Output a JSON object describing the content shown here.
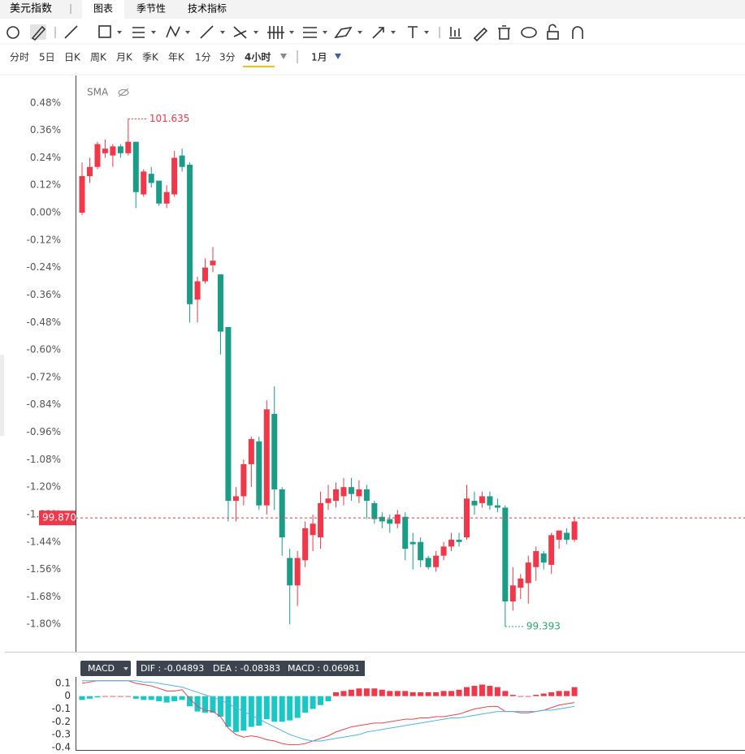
{
  "tabs": [
    "美元指数",
    "图表",
    "季节性",
    "技术指标"
  ],
  "periods": [
    "分时",
    "5日",
    "日K",
    "周K",
    "月K",
    "季K",
    "年K",
    "1分",
    "3分",
    "4小时"
  ],
  "range": "1月",
  "chart_data": [
    {
      "type": "candlestick",
      "indicator": "SMA",
      "up_color": "#f0384a",
      "down_color": "#1a9c86",
      "ylim": [
        -1.92,
        0.6
      ],
      "yticks": [
        {
          "value": 0.48,
          "label": "0.48%"
        },
        {
          "value": 0.36,
          "label": "0.36%"
        },
        {
          "value": 0.24,
          "label": "0.24%"
        },
        {
          "value": 0.12,
          "label": "0.12%"
        },
        {
          "value": 0,
          "label": "0.00%"
        },
        {
          "value": -0.12,
          "label": "-0.12%"
        },
        {
          "value": -0.24,
          "label": "-0.24%"
        },
        {
          "value": -0.36,
          "label": "-0.36%"
        },
        {
          "value": -0.48,
          "label": "-0.48%"
        },
        {
          "value": -0.6,
          "label": "-0.60%"
        },
        {
          "value": -0.72,
          "label": "-0.72%"
        },
        {
          "value": -0.84,
          "label": "-0.84%"
        },
        {
          "value": -0.96,
          "label": "-0.96%"
        },
        {
          "value": -1.08,
          "label": "-1.08%"
        },
        {
          "value": -1.2,
          "label": "-1.20%"
        },
        {
          "value": -1.32,
          "label": "-1.32%"
        },
        {
          "value": -1.44,
          "label": "-1.44%"
        },
        {
          "value": -1.56,
          "label": "-1.56%"
        },
        {
          "value": -1.68,
          "label": "-1.68%"
        },
        {
          "value": -1.8,
          "label": "-1.80%"
        }
      ],
      "open": [
        0.0,
        0.16,
        0.2,
        0.26,
        0.25,
        0.29,
        0.26,
        0.31,
        0.08,
        0.17,
        0.14,
        0.04,
        0.08,
        0.25,
        0.21,
        -0.38,
        -0.3,
        -0.23,
        -0.27,
        -0.5,
        -1.26,
        -1.24,
        -1.1,
        -1.0,
        -1.28,
        -0.88,
        -1.21,
        -1.51,
        -1.63,
        -1.52,
        -1.41,
        -1.42,
        -1.27,
        -1.26,
        -1.24,
        -1.2,
        -1.24,
        -1.21,
        -1.27,
        -1.33,
        -1.34,
        -1.36,
        -1.33,
        -1.44,
        -1.44,
        -1.51,
        -1.55,
        -1.5,
        -1.46,
        -1.43,
        -1.42,
        -1.26,
        -1.27,
        -1.24,
        -1.28,
        -1.29,
        -1.7,
        -1.64,
        -1.62,
        -1.55,
        -1.49,
        -1.54,
        -1.43,
        -1.4,
        -1.43
      ],
      "high": [
        0.22,
        0.24,
        0.31,
        0.32,
        0.3,
        0.3,
        0.41,
        0.31,
        0.19,
        0.2,
        0.14,
        0.12,
        0.27,
        0.28,
        0.22,
        -0.28,
        -0.2,
        -0.15,
        -0.27,
        -0.5,
        -1.2,
        -1.08,
        -0.98,
        -0.98,
        -0.82,
        -0.76,
        -1.2,
        -1.47,
        -1.48,
        -1.35,
        -1.32,
        -1.22,
        -1.19,
        -1.18,
        -1.16,
        -1.16,
        -1.17,
        -1.19,
        -1.26,
        -1.31,
        -1.32,
        -1.3,
        -1.31,
        -1.4,
        -1.42,
        -1.5,
        -1.48,
        -1.44,
        -1.4,
        -1.4,
        -1.19,
        -1.22,
        -1.22,
        -1.22,
        -1.25,
        -1.28,
        -1.55,
        -1.58,
        -1.5,
        -1.46,
        -1.48,
        -1.4,
        -1.39,
        -1.38,
        -1.33
      ],
      "low": [
        -0.01,
        0.13,
        0.19,
        0.24,
        0.2,
        0.24,
        0.25,
        0.02,
        0.07,
        0.11,
        0.03,
        0.02,
        0.07,
        0.18,
        -0.48,
        -0.48,
        -0.31,
        -0.26,
        -0.62,
        -1.35,
        -1.35,
        -1.28,
        -1.2,
        -1.3,
        -1.32,
        -1.3,
        -1.5,
        -1.8,
        -1.72,
        -1.55,
        -1.48,
        -1.47,
        -1.3,
        -1.29,
        -1.28,
        -1.26,
        -1.27,
        -1.34,
        -1.36,
        -1.38,
        -1.4,
        -1.38,
        -1.52,
        -1.56,
        -1.55,
        -1.56,
        -1.57,
        -1.52,
        -1.48,
        -1.46,
        -1.43,
        -1.32,
        -1.29,
        -1.3,
        -1.31,
        -1.81,
        -1.74,
        -1.69,
        -1.71,
        -1.61,
        -1.56,
        -1.58,
        -1.47,
        -1.45,
        -1.44
      ],
      "close": [
        0.16,
        0.2,
        0.3,
        0.28,
        0.29,
        0.26,
        0.31,
        0.09,
        0.18,
        0.13,
        0.04,
        0.09,
        0.24,
        0.2,
        -0.4,
        -0.3,
        -0.24,
        -0.21,
        -0.52,
        -1.26,
        -1.24,
        -1.1,
        -0.99,
        -1.28,
        -0.86,
        -1.21,
        -1.42,
        -1.63,
        -1.51,
        -1.38,
        -1.36,
        -1.27,
        -1.25,
        -1.21,
        -1.2,
        -1.23,
        -1.21,
        -1.26,
        -1.34,
        -1.35,
        -1.36,
        -1.32,
        -1.47,
        -1.45,
        -1.52,
        -1.55,
        -1.5,
        -1.46,
        -1.43,
        -1.44,
        -1.25,
        -1.28,
        -1.24,
        -1.28,
        -1.29,
        -1.7,
        -1.63,
        -1.6,
        -1.53,
        -1.48,
        -1.53,
        -1.41,
        -1.39,
        -1.43,
        -1.35
      ],
      "high_mark": {
        "index": 6,
        "label": "101.635"
      },
      "low_mark": {
        "index": 55,
        "label": "99.393"
      },
      "last_price": {
        "value": -1.335,
        "label": "99.870"
      }
    },
    {
      "type": "macd",
      "legend": "MACD",
      "readout": [
        "DIF : -0.04893",
        "DEA : -0.08383",
        "MACD : 0.06981"
      ],
      "ylim": [
        -0.42,
        0.15
      ],
      "yticks": [
        0.1,
        0,
        -0.1,
        -0.2,
        -0.3,
        -0.4
      ],
      "histogram": {
        "up_color": "#f0384a",
        "down_color": "#19c7c5",
        "values": [
          -0.03,
          -0.02,
          -0.01,
          0,
          0,
          0,
          0,
          -0.02,
          -0.03,
          -0.03,
          -0.04,
          -0.05,
          -0.04,
          -0.03,
          -0.08,
          -0.12,
          -0.13,
          -0.13,
          -0.16,
          -0.24,
          -0.28,
          -0.27,
          -0.24,
          -0.23,
          -0.18,
          -0.2,
          -0.2,
          -0.19,
          -0.17,
          -0.13,
          -0.1,
          -0.07,
          -0.04,
          0.03,
          0.04,
          0.05,
          0.06,
          0.06,
          0.06,
          0.05,
          0.04,
          0.04,
          0.04,
          0.03,
          0.03,
          0.03,
          0.03,
          0.04,
          0.04,
          0.05,
          0.07,
          0.08,
          0.09,
          0.08,
          0.07,
          0.04,
          0.01,
          0,
          0,
          0.01,
          0.02,
          0.03,
          0.04,
          0.04,
          0.07
        ]
      },
      "series": [
        {
          "color": "#e8444f",
          "values": [
            0.1,
            0.11,
            0.12,
            0.12,
            0.12,
            0.12,
            0.12,
            0.1,
            0.09,
            0.08,
            0.06,
            0.04,
            0.04,
            0.05,
            -0.02,
            -0.08,
            -0.11,
            -0.12,
            -0.16,
            -0.25,
            -0.3,
            -0.32,
            -0.31,
            -0.32,
            -0.34,
            -0.35,
            -0.37,
            -0.38,
            -0.38,
            -0.37,
            -0.35,
            -0.33,
            -0.31,
            -0.28,
            -0.26,
            -0.24,
            -0.23,
            -0.22,
            -0.21,
            -0.21,
            -0.2,
            -0.19,
            -0.18,
            -0.18,
            -0.17,
            -0.17,
            -0.16,
            -0.16,
            -0.15,
            -0.14,
            -0.12,
            -0.1,
            -0.09,
            -0.08,
            -0.08,
            -0.12,
            -0.12,
            -0.13,
            -0.13,
            -0.12,
            -0.11,
            -0.09,
            -0.07,
            -0.06,
            -0.05
          ]
        },
        {
          "color": "#4fb3e6",
          "values": [
            0.12,
            0.12,
            0.12,
            0.12,
            0.12,
            0.12,
            0.12,
            0.12,
            0.11,
            0.11,
            0.1,
            0.09,
            0.08,
            0.07,
            0.05,
            0.03,
            0.01,
            -0.01,
            -0.03,
            -0.06,
            -0.09,
            -0.12,
            -0.15,
            -0.18,
            -0.21,
            -0.24,
            -0.27,
            -0.3,
            -0.32,
            -0.34,
            -0.35,
            -0.35,
            -0.34,
            -0.33,
            -0.32,
            -0.31,
            -0.3,
            -0.28,
            -0.27,
            -0.26,
            -0.25,
            -0.24,
            -0.23,
            -0.22,
            -0.21,
            -0.2,
            -0.19,
            -0.18,
            -0.17,
            -0.17,
            -0.16,
            -0.15,
            -0.14,
            -0.13,
            -0.12,
            -0.12,
            -0.12,
            -0.12,
            -0.12,
            -0.12,
            -0.11,
            -0.11,
            -0.1,
            -0.09,
            -0.08
          ]
        }
      ]
    }
  ]
}
